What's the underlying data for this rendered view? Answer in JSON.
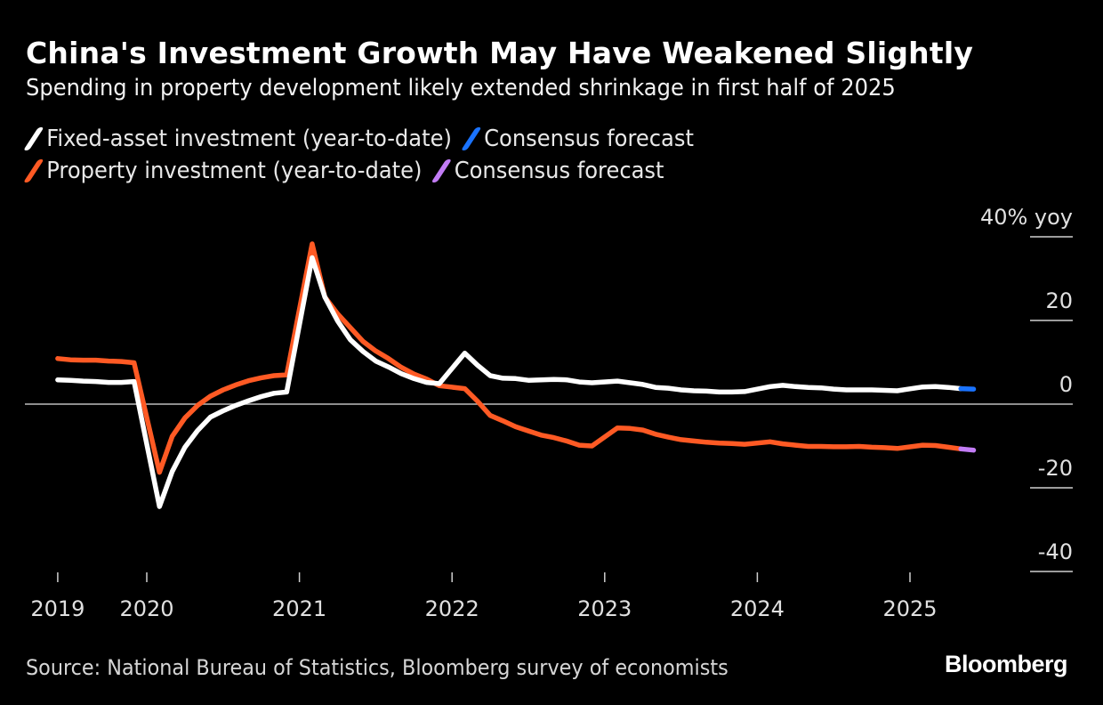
{
  "header": {
    "title": "China's Investment Growth May Have Weakened Slightly",
    "subtitle": "Spending in property development likely extended shrinkage in first half of 2025"
  },
  "legend": [
    {
      "label": "Fixed-asset investment (year-to-date)",
      "color": "#ffffff"
    },
    {
      "label": "Consensus forecast",
      "color": "#1a73ff"
    },
    {
      "label": "Property investment (year-to-date)",
      "color": "#ff5a24"
    },
    {
      "label": "Consensus forecast",
      "color": "#c27cf5"
    }
  ],
  "footer": {
    "source": "Source: National Bureau of Statistics, Bloomberg survey of economists",
    "brand": "Bloomberg"
  },
  "chart_data": {
    "type": "line",
    "title": "China's Investment Growth May Have Weakened Slightly",
    "subtitle": "Spending in property development likely extended shrinkage in first half of 2025",
    "xlabel": "",
    "ylabel": "% yoy",
    "ylim": [
      -40,
      40
    ],
    "yticks": [
      {
        "value": 40,
        "label": "40% yoy"
      },
      {
        "value": 20,
        "label": "20"
      },
      {
        "value": 0,
        "label": "0"
      },
      {
        "value": -20,
        "label": "-20"
      },
      {
        "value": -40,
        "label": "-40"
      }
    ],
    "xticks": [
      {
        "date": "2019-06",
        "label": "2019"
      },
      {
        "date": "2020-01",
        "label": "2020"
      },
      {
        "date": "2021-01",
        "label": "2021"
      },
      {
        "date": "2022-01",
        "label": "2022"
      },
      {
        "date": "2023-01",
        "label": "2023"
      },
      {
        "date": "2024-01",
        "label": "2024"
      },
      {
        "date": "2025-01",
        "label": "2025"
      }
    ],
    "zero_line": true,
    "legend_position": "top-left",
    "series": [
      {
        "name": "Fixed-asset investment (year-to-date)",
        "color": "#ffffff",
        "points": [
          [
            "2019-06",
            5.8
          ],
          [
            "2019-07",
            5.7
          ],
          [
            "2019-08",
            5.5
          ],
          [
            "2019-09",
            5.4
          ],
          [
            "2019-10",
            5.2
          ],
          [
            "2019-11",
            5.2
          ],
          [
            "2019-12",
            5.4
          ],
          [
            "2020-02",
            -24.5
          ],
          [
            "2020-03",
            -16.1
          ],
          [
            "2020-04",
            -10.3
          ],
          [
            "2020-05",
            -6.3
          ],
          [
            "2020-06",
            -3.1
          ],
          [
            "2020-07",
            -1.6
          ],
          [
            "2020-08",
            -0.3
          ],
          [
            "2020-09",
            0.8
          ],
          [
            "2020-10",
            1.8
          ],
          [
            "2020-11",
            2.6
          ],
          [
            "2020-12",
            2.9
          ],
          [
            "2021-02",
            35.0
          ],
          [
            "2021-03",
            25.6
          ],
          [
            "2021-04",
            19.9
          ],
          [
            "2021-05",
            15.4
          ],
          [
            "2021-06",
            12.6
          ],
          [
            "2021-07",
            10.3
          ],
          [
            "2021-08",
            8.9
          ],
          [
            "2021-09",
            7.3
          ],
          [
            "2021-10",
            6.1
          ],
          [
            "2021-11",
            5.2
          ],
          [
            "2021-12",
            4.9
          ],
          [
            "2022-02",
            12.2
          ],
          [
            "2022-03",
            9.3
          ],
          [
            "2022-04",
            6.8
          ],
          [
            "2022-05",
            6.2
          ],
          [
            "2022-06",
            6.1
          ],
          [
            "2022-07",
            5.7
          ],
          [
            "2022-08",
            5.8
          ],
          [
            "2022-09",
            5.9
          ],
          [
            "2022-10",
            5.8
          ],
          [
            "2022-11",
            5.3
          ],
          [
            "2022-12",
            5.1
          ],
          [
            "2023-02",
            5.5
          ],
          [
            "2023-03",
            5.1
          ],
          [
            "2023-04",
            4.7
          ],
          [
            "2023-05",
            4.0
          ],
          [
            "2023-06",
            3.8
          ],
          [
            "2023-07",
            3.4
          ],
          [
            "2023-08",
            3.2
          ],
          [
            "2023-09",
            3.1
          ],
          [
            "2023-10",
            2.9
          ],
          [
            "2023-11",
            2.9
          ],
          [
            "2023-12",
            3.0
          ],
          [
            "2024-02",
            4.2
          ],
          [
            "2024-03",
            4.5
          ],
          [
            "2024-04",
            4.2
          ],
          [
            "2024-05",
            4.0
          ],
          [
            "2024-06",
            3.9
          ],
          [
            "2024-07",
            3.6
          ],
          [
            "2024-08",
            3.4
          ],
          [
            "2024-09",
            3.4
          ],
          [
            "2024-10",
            3.4
          ],
          [
            "2024-11",
            3.3
          ],
          [
            "2024-12",
            3.2
          ],
          [
            "2025-02",
            4.1
          ],
          [
            "2025-03",
            4.2
          ],
          [
            "2025-04",
            4.0
          ],
          [
            "2025-05",
            3.7
          ]
        ]
      },
      {
        "name": "Consensus forecast (fixed-asset)",
        "color": "#1a73ff",
        "points": [
          [
            "2025-05",
            3.7
          ],
          [
            "2025-06",
            3.6
          ]
        ]
      },
      {
        "name": "Property investment (year-to-date)",
        "color": "#ff5a24",
        "points": [
          [
            "2019-06",
            10.9
          ],
          [
            "2019-07",
            10.6
          ],
          [
            "2019-08",
            10.5
          ],
          [
            "2019-09",
            10.5
          ],
          [
            "2019-10",
            10.3
          ],
          [
            "2019-11",
            10.2
          ],
          [
            "2019-12",
            9.9
          ],
          [
            "2020-02",
            -16.3
          ],
          [
            "2020-03",
            -7.7
          ],
          [
            "2020-04",
            -3.3
          ],
          [
            "2020-05",
            -0.3
          ],
          [
            "2020-06",
            1.9
          ],
          [
            "2020-07",
            3.4
          ],
          [
            "2020-08",
            4.6
          ],
          [
            "2020-09",
            5.6
          ],
          [
            "2020-10",
            6.3
          ],
          [
            "2020-11",
            6.8
          ],
          [
            "2020-12",
            7.0
          ],
          [
            "2021-02",
            38.3
          ],
          [
            "2021-03",
            25.6
          ],
          [
            "2021-04",
            21.6
          ],
          [
            "2021-05",
            18.3
          ],
          [
            "2021-06",
            15.0
          ],
          [
            "2021-07",
            12.7
          ],
          [
            "2021-08",
            10.9
          ],
          [
            "2021-09",
            8.8
          ],
          [
            "2021-10",
            7.2
          ],
          [
            "2021-11",
            6.0
          ],
          [
            "2021-12",
            4.4
          ],
          [
            "2022-02",
            3.7
          ],
          [
            "2022-03",
            0.7
          ],
          [
            "2022-04",
            -2.7
          ],
          [
            "2022-05",
            -4.0
          ],
          [
            "2022-06",
            -5.4
          ],
          [
            "2022-07",
            -6.4
          ],
          [
            "2022-08",
            -7.4
          ],
          [
            "2022-09",
            -8.0
          ],
          [
            "2022-10",
            -8.8
          ],
          [
            "2022-11",
            -9.8
          ],
          [
            "2022-12",
            -10.0
          ],
          [
            "2023-02",
            -5.7
          ],
          [
            "2023-03",
            -5.8
          ],
          [
            "2023-04",
            -6.2
          ],
          [
            "2023-05",
            -7.2
          ],
          [
            "2023-06",
            -7.9
          ],
          [
            "2023-07",
            -8.5
          ],
          [
            "2023-08",
            -8.8
          ],
          [
            "2023-09",
            -9.1
          ],
          [
            "2023-10",
            -9.3
          ],
          [
            "2023-11",
            -9.4
          ],
          [
            "2023-12",
            -9.6
          ],
          [
            "2024-02",
            -9.0
          ],
          [
            "2024-03",
            -9.5
          ],
          [
            "2024-04",
            -9.8
          ],
          [
            "2024-05",
            -10.1
          ],
          [
            "2024-06",
            -10.1
          ],
          [
            "2024-07",
            -10.2
          ],
          [
            "2024-08",
            -10.2
          ],
          [
            "2024-09",
            -10.1
          ],
          [
            "2024-10",
            -10.3
          ],
          [
            "2024-11",
            -10.4
          ],
          [
            "2024-12",
            -10.6
          ],
          [
            "2025-02",
            -9.8
          ],
          [
            "2025-03",
            -9.9
          ],
          [
            "2025-04",
            -10.3
          ],
          [
            "2025-05",
            -10.7
          ]
        ]
      },
      {
        "name": "Consensus forecast (property)",
        "color": "#c27cf5",
        "points": [
          [
            "2025-05",
            -10.7
          ],
          [
            "2025-06",
            -11.0
          ]
        ]
      }
    ]
  }
}
